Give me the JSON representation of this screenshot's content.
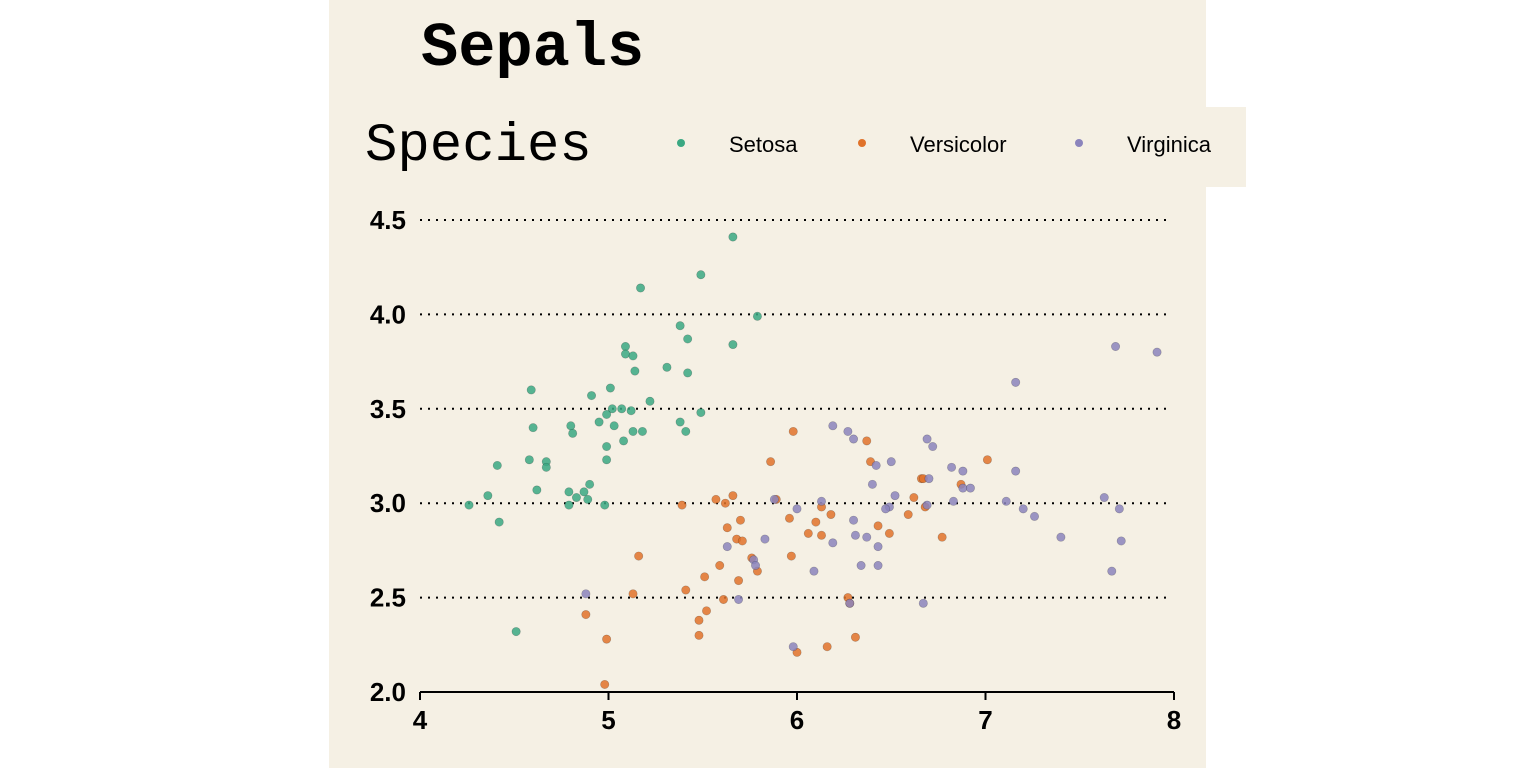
{
  "chart_data": {
    "type": "scatter",
    "title": "Sepals",
    "xlabel": "",
    "ylabel": "",
    "xlim": [
      4,
      8
    ],
    "ylim": [
      2.0,
      4.5
    ],
    "x_ticks": [
      "4",
      "5",
      "6",
      "7",
      "8"
    ],
    "y_ticks": [
      "2.0",
      "2.5",
      "3.0",
      "3.5",
      "4.0",
      "4.5"
    ],
    "grid": "horizontal dotted",
    "legend": {
      "title": "Species",
      "placement": "top",
      "entries": [
        {
          "label": "Setosa",
          "color": "#3aa882"
        },
        {
          "label": "Versicolor",
          "color": "#e0722a"
        },
        {
          "label": "Virginica",
          "color": "#8b84bc"
        }
      ]
    },
    "series": [
      {
        "name": "Setosa",
        "color": "#3aa882",
        "points": [
          [
            5.66,
            4.41
          ],
          [
            5.49,
            4.21
          ],
          [
            5.17,
            4.14
          ],
          [
            5.79,
            3.99
          ],
          [
            5.38,
            3.94
          ],
          [
            5.42,
            3.87
          ],
          [
            5.66,
            3.84
          ],
          [
            5.09,
            3.83
          ],
          [
            5.09,
            3.79
          ],
          [
            5.13,
            3.78
          ],
          [
            5.31,
            3.72
          ],
          [
            5.14,
            3.7
          ],
          [
            5.42,
            3.69
          ],
          [
            5.01,
            3.61
          ],
          [
            4.59,
            3.6
          ],
          [
            4.91,
            3.57
          ],
          [
            5.22,
            3.54
          ],
          [
            5.02,
            3.5
          ],
          [
            5.07,
            3.5
          ],
          [
            5.12,
            3.49
          ],
          [
            5.49,
            3.48
          ],
          [
            4.99,
            3.47
          ],
          [
            5.38,
            3.43
          ],
          [
            4.95,
            3.43
          ],
          [
            4.8,
            3.41
          ],
          [
            5.03,
            3.41
          ],
          [
            4.6,
            3.4
          ],
          [
            5.13,
            3.38
          ],
          [
            5.18,
            3.38
          ],
          [
            5.41,
            3.38
          ],
          [
            4.81,
            3.37
          ],
          [
            5.08,
            3.33
          ],
          [
            4.99,
            3.3
          ],
          [
            4.58,
            3.23
          ],
          [
            4.99,
            3.23
          ],
          [
            4.67,
            3.22
          ],
          [
            4.41,
            3.2
          ],
          [
            4.67,
            3.19
          ],
          [
            4.9,
            3.1
          ],
          [
            4.62,
            3.07
          ],
          [
            4.79,
            3.06
          ],
          [
            4.87,
            3.06
          ],
          [
            4.36,
            3.04
          ],
          [
            4.83,
            3.03
          ],
          [
            4.89,
            3.02
          ],
          [
            4.26,
            2.99
          ],
          [
            4.79,
            2.99
          ],
          [
            4.98,
            2.99
          ],
          [
            4.42,
            2.9
          ],
          [
            4.51,
            2.32
          ]
        ]
      },
      {
        "name": "Versicolor",
        "color": "#e0722a",
        "points": [
          [
            5.98,
            3.38
          ],
          [
            6.37,
            3.33
          ],
          [
            7.01,
            3.23
          ],
          [
            5.86,
            3.22
          ],
          [
            6.39,
            3.22
          ],
          [
            6.66,
            3.13
          ],
          [
            6.67,
            3.13
          ],
          [
            6.87,
            3.1
          ],
          [
            5.66,
            3.04
          ],
          [
            6.62,
            3.03
          ],
          [
            5.57,
            3.02
          ],
          [
            5.89,
            3.02
          ],
          [
            5.62,
            3.0
          ],
          [
            5.39,
            2.99
          ],
          [
            6.13,
            2.98
          ],
          [
            6.68,
            2.98
          ],
          [
            6.59,
            2.94
          ],
          [
            6.18,
            2.94
          ],
          [
            5.96,
            2.92
          ],
          [
            5.7,
            2.91
          ],
          [
            6.1,
            2.9
          ],
          [
            6.43,
            2.88
          ],
          [
            5.63,
            2.87
          ],
          [
            6.06,
            2.84
          ],
          [
            6.49,
            2.84
          ],
          [
            6.13,
            2.83
          ],
          [
            6.77,
            2.82
          ],
          [
            5.68,
            2.81
          ],
          [
            5.71,
            2.8
          ],
          [
            5.16,
            2.72
          ],
          [
            5.97,
            2.72
          ],
          [
            5.76,
            2.71
          ],
          [
            5.59,
            2.67
          ],
          [
            5.79,
            2.64
          ],
          [
            5.51,
            2.61
          ],
          [
            5.69,
            2.59
          ],
          [
            5.41,
            2.54
          ],
          [
            5.13,
            2.52
          ],
          [
            6.27,
            2.5
          ],
          [
            5.61,
            2.49
          ],
          [
            5.52,
            2.43
          ],
          [
            4.88,
            2.41
          ],
          [
            5.48,
            2.38
          ],
          [
            5.48,
            2.3
          ],
          [
            6.31,
            2.29
          ],
          [
            4.99,
            2.28
          ],
          [
            6.16,
            2.24
          ],
          [
            6.0,
            2.21
          ],
          [
            4.98,
            2.04
          ],
          [
            6.28,
            2.47
          ]
        ]
      },
      {
        "name": "Virginica",
        "color": "#8b84bc",
        "points": [
          [
            7.69,
            3.83
          ],
          [
            7.91,
            3.8
          ],
          [
            7.16,
            3.64
          ],
          [
            6.19,
            3.41
          ],
          [
            6.27,
            3.38
          ],
          [
            6.3,
            3.34
          ],
          [
            6.69,
            3.34
          ],
          [
            6.72,
            3.3
          ],
          [
            6.5,
            3.22
          ],
          [
            6.42,
            3.2
          ],
          [
            6.82,
            3.19
          ],
          [
            6.88,
            3.17
          ],
          [
            7.16,
            3.17
          ],
          [
            6.7,
            3.13
          ],
          [
            6.4,
            3.1
          ],
          [
            6.88,
            3.08
          ],
          [
            6.92,
            3.08
          ],
          [
            6.52,
            3.04
          ],
          [
            7.63,
            3.03
          ],
          [
            5.88,
            3.02
          ],
          [
            6.13,
            3.01
          ],
          [
            6.83,
            3.01
          ],
          [
            7.11,
            3.01
          ],
          [
            6.69,
            2.99
          ],
          [
            6.49,
            2.98
          ],
          [
            6.47,
            2.97
          ],
          [
            7.2,
            2.97
          ],
          [
            7.71,
            2.97
          ],
          [
            6.0,
            2.97
          ],
          [
            7.26,
            2.93
          ],
          [
            6.3,
            2.91
          ],
          [
            6.31,
            2.83
          ],
          [
            6.37,
            2.82
          ],
          [
            7.4,
            2.82
          ],
          [
            5.83,
            2.81
          ],
          [
            7.72,
            2.8
          ],
          [
            6.19,
            2.79
          ],
          [
            6.43,
            2.77
          ],
          [
            5.63,
            2.77
          ],
          [
            5.77,
            2.7
          ],
          [
            5.78,
            2.67
          ],
          [
            6.34,
            2.67
          ],
          [
            6.43,
            2.67
          ],
          [
            7.67,
            2.64
          ],
          [
            6.09,
            2.64
          ],
          [
            4.88,
            2.52
          ],
          [
            5.69,
            2.49
          ],
          [
            6.28,
            2.47
          ],
          [
            6.67,
            2.47
          ],
          [
            5.98,
            2.24
          ]
        ]
      }
    ]
  }
}
